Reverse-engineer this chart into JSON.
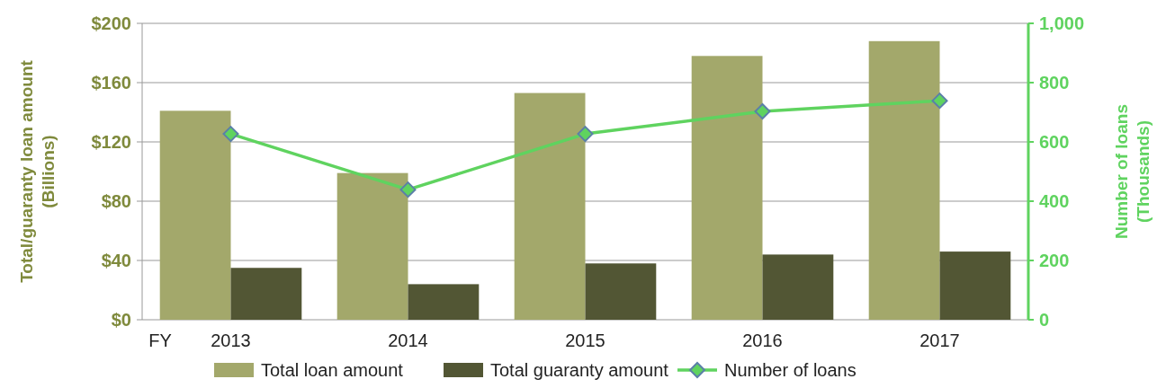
{
  "chart_data": {
    "type": "bar",
    "categories": [
      "2013",
      "2014",
      "2015",
      "2016",
      "2017"
    ],
    "ylabel": "Total/guaranty loan amount\n(Billions)",
    "y2label": "Number of loans\n(Thousands)",
    "series": [
      {
        "name": "Total loan amount",
        "color": "#a3a86b",
        "values": [
          141,
          99,
          153,
          178,
          188
        ]
      },
      {
        "name": "Total guaranty amount",
        "color": "#525634",
        "values": [
          35,
          24,
          38,
          44,
          46
        ]
      },
      {
        "name": "Number of loans",
        "type": "line",
        "axis": "y2",
        "color": "#5fd35f",
        "marker": "diamond",
        "values": [
          627,
          439,
          627,
          703,
          739
        ]
      }
    ],
    "ylim": [
      0,
      200
    ],
    "yticks": [
      {
        "value": 0,
        "label": "$0"
      },
      {
        "value": 40,
        "label": "$40"
      },
      {
        "value": 80,
        "label": "$80"
      },
      {
        "value": 120,
        "label": "$120"
      },
      {
        "value": 160,
        "label": "$160"
      },
      {
        "value": 200,
        "label": "$200"
      }
    ],
    "y2lim": [
      0,
      1000
    ],
    "y2ticks": [
      0,
      200,
      400,
      600,
      800,
      {
        "value": 1000,
        "label": "1,000"
      }
    ],
    "annotations": [
      "FY"
    ],
    "grid": "y",
    "legend": "bottom"
  }
}
